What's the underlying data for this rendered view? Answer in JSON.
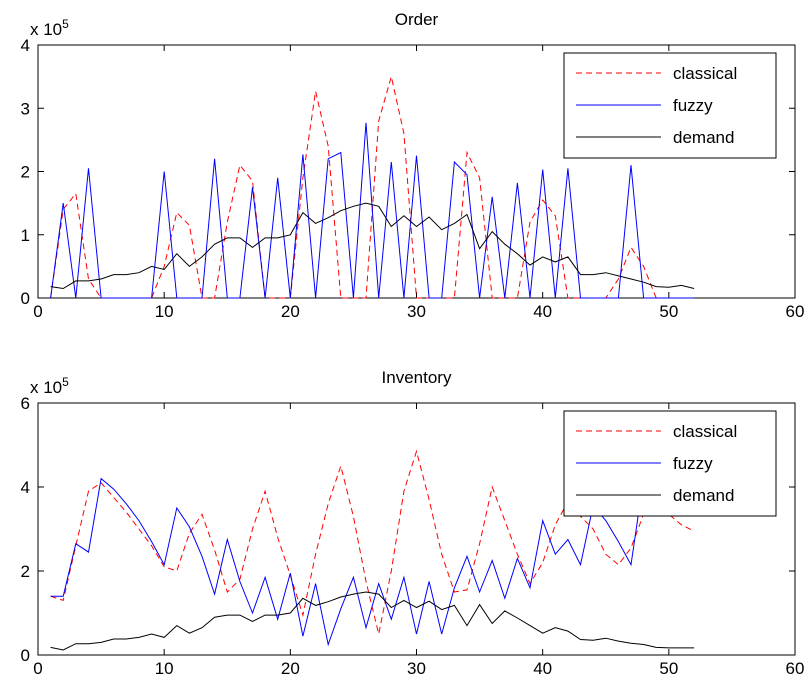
{
  "chart_data": [
    {
      "type": "line",
      "title": "Order",
      "scale_label": "x 10",
      "scale_exponent": "5",
      "xlim": [
        0,
        60
      ],
      "ylim": [
        0,
        4
      ],
      "xticks": [
        "0",
        "10",
        "20",
        "30",
        "40",
        "50",
        "60"
      ],
      "yticks": [
        "0",
        "1",
        "2",
        "3",
        "4"
      ],
      "grid": false,
      "legend_position": "top-right",
      "series": [
        {
          "name": "classical",
          "color": "#ff0000",
          "style": "dashed",
          "x": [
            1,
            2,
            3,
            4,
            5,
            6,
            7,
            8,
            9,
            10,
            11,
            12,
            13,
            14,
            15,
            16,
            17,
            18,
            19,
            20,
            21,
            22,
            23,
            24,
            25,
            26,
            27,
            28,
            29,
            30,
            31,
            32,
            33,
            34,
            35,
            36,
            37,
            38,
            39,
            40,
            41,
            42,
            43,
            44,
            45,
            46,
            47,
            48,
            49,
            50,
            51,
            52
          ],
          "y": [
            0,
            1.4,
            1.65,
            0.3,
            0,
            0,
            0,
            0,
            0,
            0.5,
            1.35,
            1.15,
            0,
            0,
            1.2,
            2.1,
            1.85,
            0,
            0,
            0,
            1.9,
            3.27,
            2.4,
            0,
            0,
            0,
            2.8,
            3.5,
            2.6,
            0,
            0,
            0,
            0,
            2.3,
            1.9,
            0,
            0,
            0,
            1.2,
            1.55,
            1.3,
            0,
            0,
            0,
            0,
            0.3,
            0.8,
            0.5,
            0,
            0,
            0,
            0
          ]
        },
        {
          "name": "fuzzy",
          "color": "#0000ff",
          "style": "solid",
          "x": [
            1,
            2,
            3,
            4,
            5,
            6,
            7,
            8,
            9,
            10,
            11,
            12,
            13,
            14,
            15,
            16,
            17,
            18,
            19,
            20,
            21,
            22,
            23,
            24,
            25,
            26,
            27,
            28,
            29,
            30,
            31,
            32,
            33,
            34,
            35,
            36,
            37,
            38,
            39,
            40,
            41,
            42,
            43,
            44,
            45,
            46,
            47,
            48,
            49,
            50,
            51,
            52
          ],
          "y": [
            0,
            1.5,
            0,
            2.05,
            0,
            0,
            0,
            0,
            0,
            2,
            0,
            0,
            0,
            2.2,
            0,
            0,
            1.75,
            0,
            1.9,
            0,
            2.27,
            0,
            2.2,
            2.3,
            0,
            2.77,
            0,
            2.15,
            0,
            2.25,
            0,
            0,
            2.15,
            1.95,
            0,
            1.6,
            0,
            1.82,
            0,
            2.03,
            0,
            2.05,
            0,
            0,
            0,
            0,
            2.1,
            0,
            0,
            0,
            0,
            0
          ]
        },
        {
          "name": "demand",
          "color": "#000000",
          "style": "solid",
          "x": [
            1,
            2,
            3,
            4,
            5,
            6,
            7,
            8,
            9,
            10,
            11,
            12,
            13,
            14,
            15,
            16,
            17,
            18,
            19,
            20,
            21,
            22,
            23,
            24,
            25,
            26,
            27,
            28,
            29,
            30,
            31,
            32,
            33,
            34,
            35,
            36,
            37,
            38,
            39,
            40,
            41,
            42,
            43,
            44,
            45,
            46,
            47,
            48,
            49,
            50,
            51,
            52
          ],
          "y": [
            0.18,
            0.15,
            0.27,
            0.27,
            0.3,
            0.37,
            0.37,
            0.4,
            0.5,
            0.45,
            0.7,
            0.5,
            0.65,
            0.85,
            0.95,
            0.95,
            0.8,
            0.95,
            0.95,
            1,
            1.35,
            1.18,
            1.27,
            1.38,
            1.45,
            1.5,
            1.45,
            1.13,
            1.3,
            1.13,
            1.28,
            1.08,
            1.18,
            1.32,
            0.78,
            1.05,
            0.85,
            0.7,
            0.52,
            0.65,
            0.57,
            0.65,
            0.37,
            0.37,
            0.4,
            0.35,
            0.3,
            0.25,
            0.18,
            0.17,
            0.2,
            0.15
          ]
        }
      ]
    },
    {
      "type": "line",
      "title": "Inventory",
      "scale_label": "x 10",
      "scale_exponent": "5",
      "xlim": [
        0,
        60
      ],
      "ylim": [
        0,
        6
      ],
      "xticks": [
        "0",
        "10",
        "20",
        "30",
        "40",
        "50",
        "60"
      ],
      "yticks": [
        "0",
        "2",
        "4",
        "6"
      ],
      "grid": false,
      "legend_position": "top-right",
      "series": [
        {
          "name": "classical",
          "color": "#ff0000",
          "style": "dashed",
          "x": [
            1,
            2,
            3,
            4,
            5,
            6,
            7,
            8,
            9,
            10,
            11,
            12,
            13,
            14,
            15,
            16,
            17,
            18,
            19,
            20,
            21,
            22,
            23,
            24,
            25,
            26,
            27,
            28,
            29,
            30,
            31,
            32,
            33,
            34,
            35,
            36,
            37,
            38,
            39,
            40,
            41,
            42,
            43,
            44,
            45,
            46,
            47,
            48,
            49,
            50,
            51,
            52
          ],
          "y": [
            1.4,
            1.3,
            2.6,
            3.9,
            4.1,
            3.75,
            3.4,
            3.0,
            2.6,
            2.1,
            2.0,
            2.9,
            3.35,
            2.5,
            1.5,
            1.8,
            3.0,
            3.9,
            2.8,
            1.9,
            0.95,
            2.4,
            3.6,
            4.5,
            3.3,
            1.75,
            0.5,
            2.0,
            3.9,
            4.85,
            3.7,
            2.4,
            1.5,
            1.55,
            2.65,
            4.0,
            3.2,
            2.4,
            1.7,
            2.2,
            3.1,
            3.65,
            3.3,
            3.0,
            2.4,
            2.15,
            2.55,
            3.35,
            3.4,
            3.35,
            3.1,
            2.95
          ]
        },
        {
          "name": "fuzzy",
          "color": "#0000ff",
          "style": "solid",
          "x": [
            1,
            2,
            3,
            4,
            5,
            6,
            7,
            8,
            9,
            10,
            11,
            12,
            13,
            14,
            15,
            16,
            17,
            18,
            19,
            20,
            21,
            22,
            23,
            24,
            25,
            26,
            27,
            28,
            29,
            30,
            31,
            32,
            33,
            34,
            35,
            36,
            37,
            38,
            39,
            40,
            41,
            42,
            43,
            44,
            45,
            46,
            47,
            48,
            49,
            50,
            51,
            52
          ],
          "y": [
            1.4,
            1.4,
            2.65,
            2.45,
            4.2,
            3.95,
            3.6,
            3.2,
            2.7,
            2.15,
            3.5,
            3.05,
            2.35,
            1.45,
            2.75,
            1.75,
            1.0,
            1.85,
            0.85,
            1.95,
            0.45,
            1.7,
            0.25,
            1.1,
            1.85,
            0.65,
            1.7,
            0.85,
            1.85,
            0.5,
            1.75,
            0.5,
            1.6,
            2.35,
            1.5,
            2.25,
            1.35,
            2.3,
            1.6,
            3.2,
            2.4,
            2.75,
            2.15,
            3.55,
            3.2,
            2.7,
            2.15,
            4.2,
            4.2,
            4.1,
            4.05,
            4.05
          ]
        },
        {
          "name": "demand",
          "color": "#000000",
          "style": "solid",
          "x": [
            1,
            2,
            3,
            4,
            5,
            6,
            7,
            8,
            9,
            10,
            11,
            12,
            13,
            14,
            15,
            16,
            17,
            18,
            19,
            20,
            21,
            22,
            23,
            24,
            25,
            26,
            27,
            28,
            29,
            30,
            31,
            32,
            33,
            34,
            35,
            36,
            37,
            38,
            39,
            40,
            41,
            42,
            43,
            44,
            45,
            46,
            47,
            48,
            49,
            50,
            51,
            52
          ],
          "y": [
            0.18,
            0.12,
            0.27,
            0.27,
            0.3,
            0.38,
            0.38,
            0.42,
            0.5,
            0.42,
            0.7,
            0.52,
            0.65,
            0.9,
            0.95,
            0.95,
            0.8,
            0.95,
            0.95,
            1.0,
            1.35,
            1.18,
            1.27,
            1.38,
            1.45,
            1.5,
            1.45,
            1.13,
            1.3,
            1.13,
            1.28,
            1.08,
            1.18,
            0.7,
            1.2,
            0.75,
            1.05,
            0.88,
            0.7,
            0.52,
            0.65,
            0.57,
            0.37,
            0.35,
            0.4,
            0.33,
            0.28,
            0.25,
            0.18,
            0.17,
            0.17,
            0.17
          ]
        }
      ]
    }
  ]
}
